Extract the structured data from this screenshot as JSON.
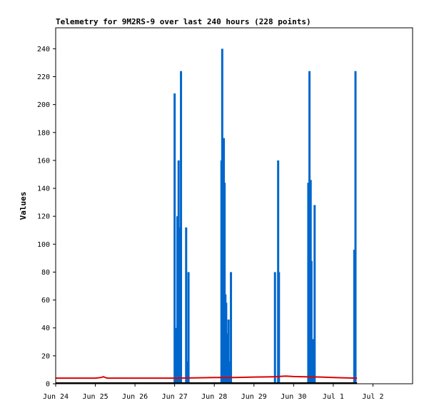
{
  "chart_data": {
    "type": "bar",
    "title": "Telemetry for 9M2RS-9 over last 240 hours (228 points)",
    "xlabel": "",
    "ylabel": "Values",
    "x_ticks": [
      "Jun 24",
      "Jun 25",
      "Jun 26",
      "Jun 27",
      "Jun 28",
      "Jun 29",
      "Jun 30",
      "Jul 1",
      "Jul 2"
    ],
    "y_ticks": [
      "0",
      "20",
      "40",
      "60",
      "80",
      "100",
      "120",
      "140",
      "160",
      "180",
      "200",
      "220",
      "240"
    ],
    "ylim": [
      0,
      255
    ],
    "xlim_days": [
      0,
      9
    ],
    "grid": false,
    "colors": {
      "bars": "#0066cc",
      "line": "#dd0000",
      "axis": "#000000"
    },
    "series": [
      {
        "type": "bar",
        "x_days": [
          3.0,
          3.04,
          3.07,
          3.1,
          3.13,
          3.16,
          3.29,
          3.31,
          3.35,
          4.18,
          4.2,
          4.22,
          4.24,
          4.26,
          4.28,
          4.3,
          4.32,
          4.34,
          4.36,
          4.38,
          4.42,
          5.53,
          5.61,
          5.63,
          6.37,
          6.4,
          6.43,
          6.45,
          6.48,
          6.53,
          7.53,
          7.56
        ],
        "values": [
          208,
          40,
          120,
          160,
          112,
          224,
          112,
          16,
          80,
          160,
          240,
          120,
          176,
          144,
          64,
          58,
          36,
          26,
          46,
          16,
          80,
          80,
          160,
          80,
          144,
          224,
          146,
          88,
          32,
          128,
          96,
          224
        ]
      },
      {
        "type": "line",
        "x_days": [
          0,
          1.0,
          1.15,
          1.2,
          1.3,
          2.0,
          3.0,
          3.5,
          4.0,
          4.5,
          5.0,
          5.5,
          5.8,
          6.0,
          6.3,
          6.7,
          7.0,
          7.3,
          7.6
        ],
        "values": [
          4,
          4,
          4.5,
          5,
          4,
          4,
          4,
          4.2,
          4.5,
          4.5,
          4.8,
          5,
          5.5,
          5.2,
          5.0,
          4.8,
          4.5,
          4.2,
          4
        ]
      }
    ]
  }
}
